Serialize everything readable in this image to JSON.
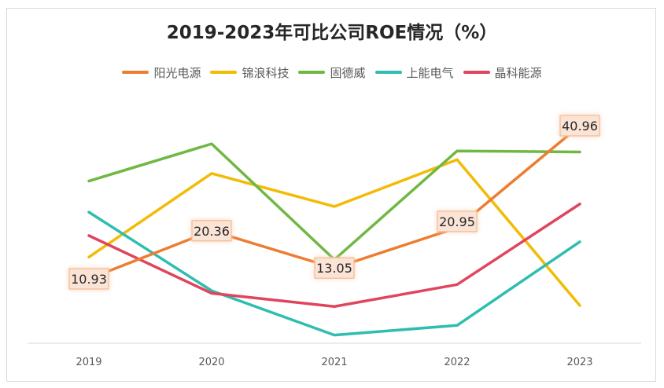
{
  "chart_data": {
    "type": "line",
    "title": "2019-2023年可比公司ROE情况（%）",
    "xlabel": "",
    "ylabel": "",
    "categories": [
      "2019",
      "2020",
      "2021",
      "2022",
      "2023"
    ],
    "ylim": [
      -5,
      50
    ],
    "grid": false,
    "legend_position": "top",
    "series": [
      {
        "name": "阳光电源",
        "color": "#ed7d31",
        "values": [
          10.93,
          20.36,
          13.05,
          20.95,
          40.96
        ],
        "labels": [
          "10.93",
          "20.36",
          "13.05",
          "20.95",
          "40.96"
        ]
      },
      {
        "name": "锦浪科技",
        "color": "#f2bb05",
        "values": [
          15.2,
          31.6,
          25.1,
          34.3,
          5.7
        ]
      },
      {
        "name": "固德威",
        "color": "#70b843",
        "values": [
          30.1,
          37.4,
          14.7,
          36.0,
          35.8
        ]
      },
      {
        "name": "上能电气",
        "color": "#2ebdb0",
        "values": [
          24.0,
          8.6,
          -0.1,
          1.8,
          18.2
        ]
      },
      {
        "name": "晶科能源",
        "color": "#e0455e",
        "values": [
          19.4,
          8.1,
          5.5,
          9.8,
          25.6
        ]
      }
    ]
  }
}
